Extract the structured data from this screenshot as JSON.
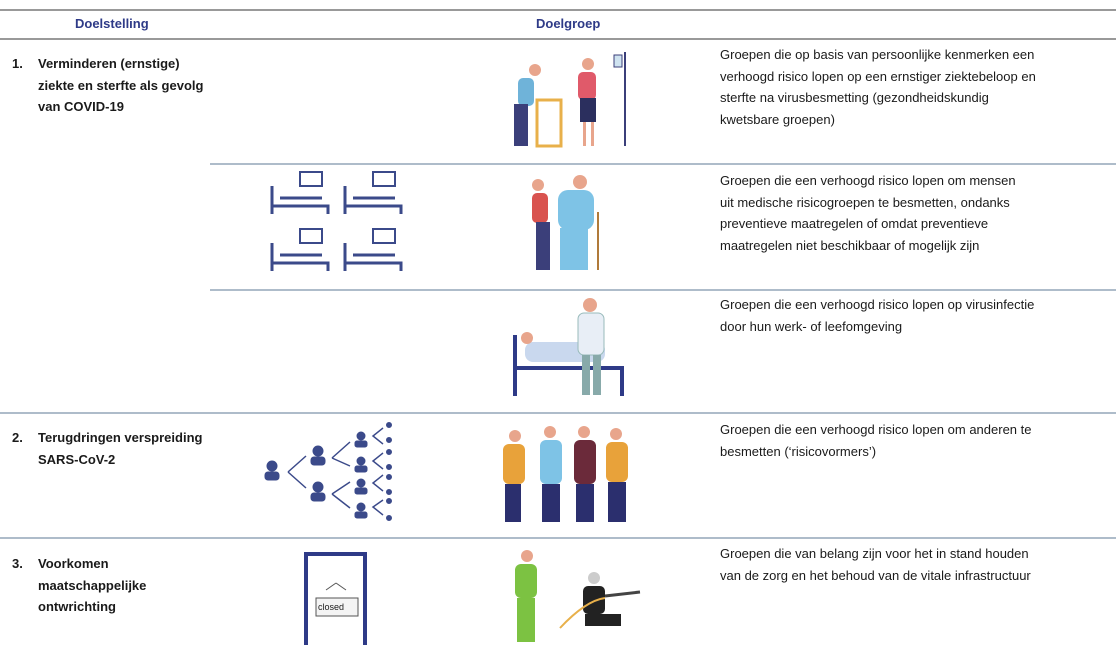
{
  "header": {
    "columns": [
      "Doelstelling",
      "Doelgroep"
    ]
  },
  "rows": [
    {
      "number": "1.",
      "goal": [
        "Verminderen (ernstige)",
        "ziekte en sterfte als gevolg",
        "van COVID-19"
      ],
      "groups": [
        {
          "description": [
            "Groepen die op basis van persoonlijke kenmerken een",
            "verhoogd risico lopen op een ernstiger ziektebeloop en",
            "sterfte na virusbesmetting (gezondheidskundig",
            "kwetsbare groepen)"
          ]
        },
        {
          "description": [
            "Groepen die een verhoogd risico lopen om mensen",
            "uit medische risicogroepen te besmetten, ondanks",
            "preventieve maatregelen of omdat preventieve",
            "maatregelen niet beschikbaar of mogelijk zijn"
          ]
        },
        {
          "description": [
            "Groepen die een verhoogd risico lopen op virusinfectie",
            "door hun werk- of leefomgeving"
          ]
        }
      ]
    },
    {
      "number": "2.",
      "goal": [
        "Terugdringen verspreiding",
        "SARS-CoV-2"
      ],
      "groups": [
        {
          "description": [
            "Groepen die een verhoogd risico lopen om anderen te",
            "besmetten (‘risicovormers’)"
          ]
        }
      ]
    },
    {
      "number": "3.",
      "goal": [
        "Voorkomen",
        "maatschappelijke",
        "ontwrichting"
      ],
      "groups": [
        {
          "description": [
            "Groepen die van belang zijn voor het in stand houden",
            "van de zorg en het behoud van de vitale infrastructuur"
          ],
          "sign": "closed"
        }
      ]
    }
  ]
}
